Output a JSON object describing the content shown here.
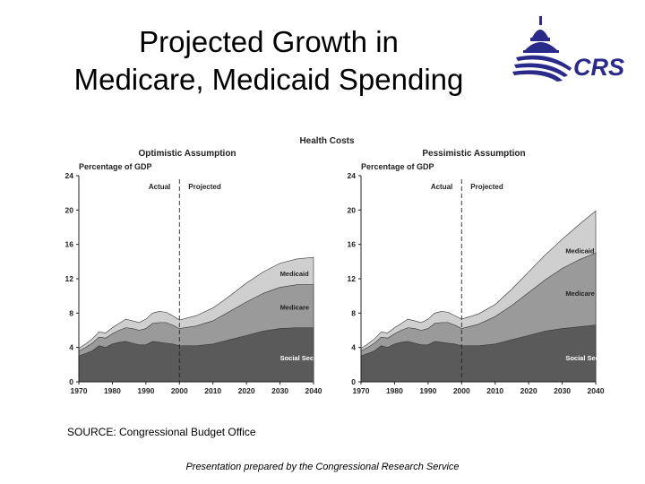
{
  "slide": {
    "title_line1": "Projected Growth in",
    "title_line2": "Medicare, Medicaid Spending",
    "logo_text": "CRS",
    "source": "SOURCE: Congressional Budget Office",
    "footer": "Presentation prepared by the Congressional Research Service"
  },
  "colors": {
    "social_security": "#5a5a5a",
    "medicare": "#9a9a9a",
    "medicaid": "#cfcfcf",
    "logo": "#2a2a8a"
  },
  "chart_data": {
    "type": "area",
    "title": "Health Costs",
    "charts": [
      {
        "title": "Optimistic Assumption",
        "ylabel": "Percentage of GDP",
        "ylim": [
          0,
          24
        ],
        "yticks": [
          0,
          4,
          8,
          12,
          16,
          20,
          24
        ],
        "xticks": [
          1970,
          1980,
          1990,
          2000,
          2010,
          2020,
          2030,
          2040
        ],
        "xlim": [
          1970,
          2040
        ],
        "divider_x": 2000,
        "actual_label": "Actual",
        "projected_label": "Projected",
        "x": [
          1970,
          1972,
          1974,
          1976,
          1978,
          1980,
          1982,
          1984,
          1986,
          1988,
          1990,
          1992,
          1994,
          1996,
          1998,
          2000,
          2005,
          2010,
          2015,
          2020,
          2025,
          2030,
          2035,
          2040
        ],
        "series": [
          {
            "name": "Social Security",
            "label_at": [
              2030,
              2.5
            ],
            "values": [
              3.0,
              3.3,
              3.6,
              4.2,
              4.0,
              4.4,
              4.6,
              4.7,
              4.5,
              4.3,
              4.3,
              4.7,
              4.6,
              4.5,
              4.4,
              4.2,
              4.2,
              4.4,
              4.9,
              5.4,
              5.9,
              6.2,
              6.3,
              6.3
            ]
          },
          {
            "name": "Medicare",
            "label_at": [
              2030,
              8.4
            ],
            "values": [
              3.6,
              4.0,
              4.5,
              5.2,
              5.1,
              5.6,
              6.0,
              6.3,
              6.2,
              6.0,
              6.2,
              6.8,
              6.9,
              6.9,
              6.6,
              6.2,
              6.5,
              7.1,
              8.2,
              9.3,
              10.3,
              11.0,
              11.3,
              11.3
            ]
          },
          {
            "name": "Medicaid",
            "label_at": [
              2030,
              12.3
            ],
            "values": [
              3.9,
              4.4,
              5.0,
              5.8,
              5.7,
              6.3,
              6.8,
              7.3,
              7.1,
              6.9,
              7.3,
              8.0,
              8.2,
              8.1,
              7.7,
              7.2,
              7.7,
              8.6,
              10.0,
              11.5,
              12.8,
              13.8,
              14.3,
              14.5
            ]
          }
        ]
      },
      {
        "title": "Pessimistic Assumption",
        "ylabel": "Percentage of GDP",
        "ylim": [
          0,
          24
        ],
        "yticks": [
          0,
          4,
          8,
          12,
          16,
          20,
          24
        ],
        "xticks": [
          1970,
          1980,
          1990,
          2000,
          2010,
          2020,
          2030,
          2040
        ],
        "xlim": [
          1970,
          2040
        ],
        "divider_x": 2000,
        "actual_label": "Actual",
        "projected_label": "Projected",
        "x": [
          1970,
          1972,
          1974,
          1976,
          1978,
          1980,
          1982,
          1984,
          1986,
          1988,
          1990,
          1992,
          1994,
          1996,
          1998,
          2000,
          2005,
          2010,
          2015,
          2020,
          2025,
          2030,
          2035,
          2040
        ],
        "series": [
          {
            "name": "Social Security",
            "label_at": [
              2031,
              2.5
            ],
            "values": [
              3.0,
              3.3,
              3.6,
              4.2,
              4.0,
              4.4,
              4.6,
              4.7,
              4.5,
              4.3,
              4.3,
              4.7,
              4.6,
              4.5,
              4.4,
              4.2,
              4.2,
              4.4,
              4.9,
              5.4,
              5.9,
              6.2,
              6.4,
              6.6
            ]
          },
          {
            "name": "Medicare",
            "label_at": [
              2031,
              10.0
            ],
            "values": [
              3.6,
              4.0,
              4.5,
              5.2,
              5.1,
              5.6,
              6.0,
              6.3,
              6.2,
              6.0,
              6.2,
              6.8,
              6.9,
              6.9,
              6.6,
              6.2,
              6.7,
              7.6,
              8.9,
              10.4,
              11.9,
              13.2,
              14.2,
              15.0
            ]
          },
          {
            "name": "Medicaid",
            "label_at": [
              2031,
              15.0
            ],
            "values": [
              3.9,
              4.4,
              5.0,
              5.8,
              5.7,
              6.3,
              6.8,
              7.3,
              7.1,
              6.9,
              7.3,
              8.0,
              8.2,
              8.1,
              7.7,
              7.3,
              7.9,
              9.0,
              10.8,
              12.8,
              14.8,
              16.6,
              18.3,
              19.9
            ]
          }
        ]
      }
    ]
  }
}
